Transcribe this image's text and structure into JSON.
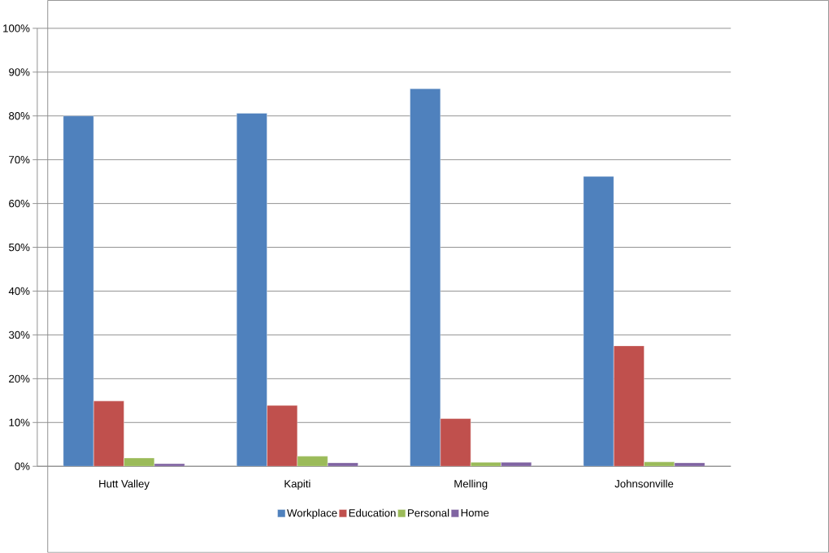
{
  "chart_data": {
    "type": "bar",
    "categories": [
      "Hutt Valley",
      "Kapiti",
      "Melling",
      "Johnsonville"
    ],
    "series": [
      {
        "name": "Workplace",
        "color": "#4f81bd",
        "values": [
          80,
          80.6,
          86.2,
          66.2
        ]
      },
      {
        "name": "Education",
        "color": "#c0504d",
        "values": [
          14.9,
          13.9,
          10.9,
          27.5
        ]
      },
      {
        "name": "Personal",
        "color": "#9bbb59",
        "values": [
          1.9,
          2.3,
          0.9,
          1.0
        ]
      },
      {
        "name": "Home",
        "color": "#8064a2",
        "values": [
          0.6,
          0.8,
          0.9,
          0.8
        ]
      }
    ],
    "ylim": [
      0,
      100
    ],
    "yticks": [
      {
        "value": 0,
        "label": "0%"
      },
      {
        "value": 10,
        "label": "10%"
      },
      {
        "value": 20,
        "label": "20%"
      },
      {
        "value": 30,
        "label": "30%"
      },
      {
        "value": 40,
        "label": "40%"
      },
      {
        "value": 50,
        "label": "50%"
      },
      {
        "value": 60,
        "label": "60%"
      },
      {
        "value": 70,
        "label": "70%"
      },
      {
        "value": 80,
        "label": "80%"
      },
      {
        "value": 90,
        "label": "90%"
      },
      {
        "value": 100,
        "label": "100%"
      }
    ],
    "grid": "y",
    "legend": "bottom"
  }
}
